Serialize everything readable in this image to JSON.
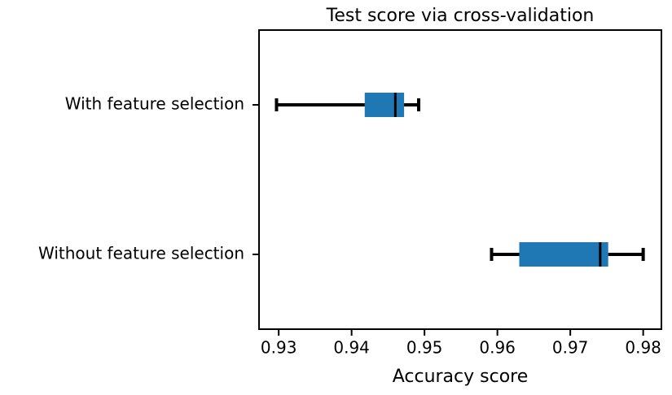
{
  "chart_data": {
    "type": "boxplot",
    "title": "Test score via cross-validation",
    "xlabel": "Accuracy score",
    "categories": [
      "Without feature selection",
      "With feature selection"
    ],
    "boxes": [
      {
        "whislo": 0.9592,
        "q1": 0.963,
        "med": 0.9741,
        "q3": 0.9752,
        "whishi": 0.98
      },
      {
        "whislo": 0.9297,
        "q1": 0.9418,
        "med": 0.946,
        "q3": 0.9472,
        "whishi": 0.9492
      }
    ],
    "color": "#1f77b4",
    "xlim": [
      0.9273,
      0.9825
    ],
    "xticks": [
      0.93,
      0.94,
      0.95,
      0.96,
      0.97,
      0.98
    ]
  }
}
